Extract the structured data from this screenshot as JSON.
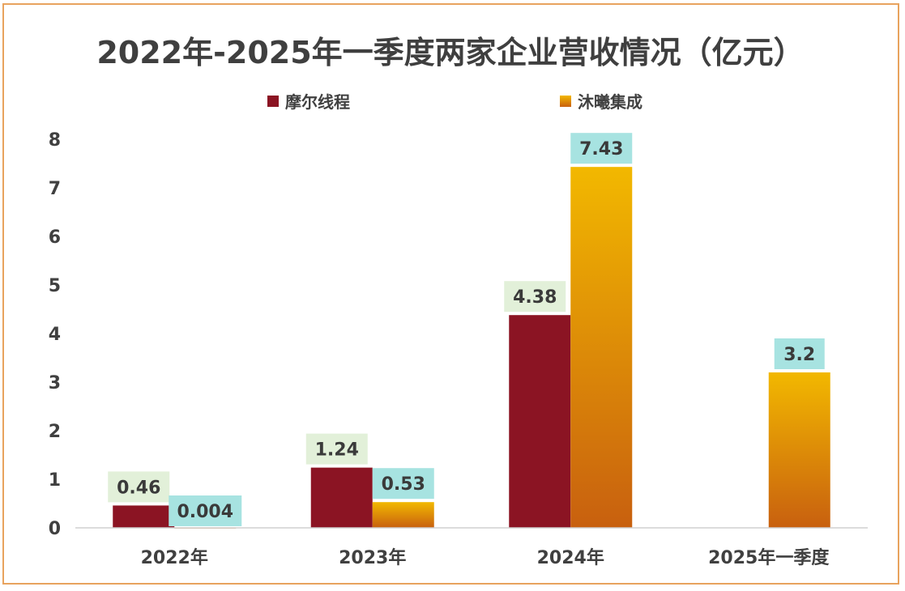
{
  "chart_data": {
    "type": "bar",
    "title": "2022年-2025年一季度两家企业营收情况（亿元）",
    "categories": [
      "2022年",
      "2023年",
      "2024年",
      "2025年一季度"
    ],
    "series": [
      {
        "name": "摩尔线程",
        "values": [
          0.46,
          1.24,
          4.38,
          null
        ],
        "labels": [
          "0.46",
          "1.24",
          "4.38",
          ""
        ],
        "color": "#8B1423",
        "label_bg": "#E2F0D9"
      },
      {
        "name": "沐曦集成",
        "values": [
          0.004,
          0.53,
          7.43,
          3.2
        ],
        "labels": [
          "0.004",
          "0.53",
          "7.43",
          "3.2"
        ],
        "color_top": "#F2B800",
        "color_bottom": "#C8600F",
        "label_bg": "#A7E3E1"
      }
    ],
    "ylim": [
      0,
      8
    ],
    "yticks": [
      "0",
      "1",
      "2",
      "3",
      "4",
      "5",
      "6",
      "7",
      "8"
    ],
    "xlabel": "",
    "ylabel": "",
    "legend_position": "top-center",
    "grid": false
  }
}
